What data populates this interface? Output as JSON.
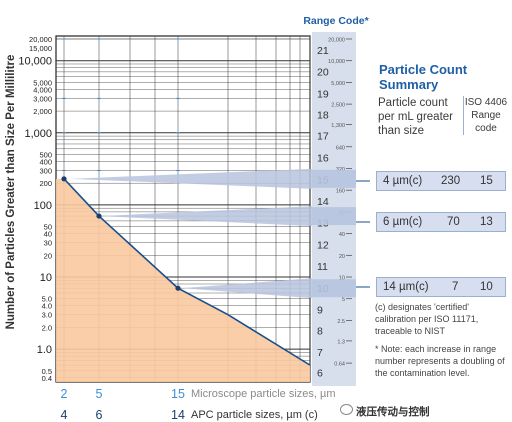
{
  "chart_data": {
    "type": "line",
    "ylabel": "Number of Particles Greater than Size Per Millilitre",
    "y_scale": "log",
    "ylim": [
      0.35,
      22000
    ],
    "x_ticks_microscope": [
      "2",
      "5",
      "15"
    ],
    "x_ticks_apc": [
      "4",
      "6",
      "14"
    ],
    "xlabel_microscope": "Microscope particle sizes, µm",
    "xlabel_apc": "APC particle sizes, µm (c)",
    "y_tick_labels": [
      {
        "v": 20000,
        "t": "20,000"
      },
      {
        "v": 15000,
        "t": "15,000"
      },
      {
        "v": 10000,
        "t": "10,000"
      },
      {
        "v": 5000,
        "t": "5,000"
      },
      {
        "v": 4000,
        "t": "4,000"
      },
      {
        "v": 3000,
        "t": "3,000"
      },
      {
        "v": 2000,
        "t": "2,000"
      },
      {
        "v": 1000,
        "t": "1,000"
      },
      {
        "v": 500,
        "t": "500"
      },
      {
        "v": 400,
        "t": "400"
      },
      {
        "v": 300,
        "t": "300"
      },
      {
        "v": 200,
        "t": "200"
      },
      {
        "v": 100,
        "t": "100"
      },
      {
        "v": 50,
        "t": "50"
      },
      {
        "v": 40,
        "t": "40"
      },
      {
        "v": 30,
        "t": "30"
      },
      {
        "v": 20,
        "t": "20"
      },
      {
        "v": 10,
        "t": "10"
      },
      {
        "v": 5,
        "t": "5.0"
      },
      {
        "v": 4,
        "t": "4.0"
      },
      {
        "v": 3,
        "t": "3.0"
      },
      {
        "v": 2,
        "t": "2.0"
      },
      {
        "v": 1,
        "t": "1.0"
      },
      {
        "v": 0.5,
        "t": "0.5"
      },
      {
        "v": 0.4,
        "t": "0.4"
      }
    ],
    "series": [
      {
        "x": [
          "4",
          "6",
          "14",
          "18",
          "30"
        ],
        "values": [
          230,
          70,
          7,
          3,
          0.6
        ]
      }
    ],
    "range_code_title": "Range Code*",
    "range_codes": [
      "21",
      "20",
      "19",
      "18",
      "17",
      "16",
      "15",
      "14",
      "13",
      "12",
      "11",
      "10",
      "9",
      "8",
      "7",
      "6"
    ],
    "range_bound_labels": [
      {
        "v": 20000,
        "t": "20,000"
      },
      {
        "v": 10000,
        "t": "10,000"
      },
      {
        "v": 5000,
        "t": "5,000"
      },
      {
        "v": 2500,
        "t": "2,500"
      },
      {
        "v": 1300,
        "t": "1,300"
      },
      {
        "v": 640,
        "t": "640"
      },
      {
        "v": 320,
        "t": "320"
      },
      {
        "v": 160,
        "t": "160"
      },
      {
        "v": 80,
        "t": "80"
      },
      {
        "v": 40,
        "t": "40"
      },
      {
        "v": 20,
        "t": "20"
      },
      {
        "v": 10,
        "t": "10"
      },
      {
        "v": 5,
        "t": "5"
      },
      {
        "v": 2.5,
        "t": "2.5"
      },
      {
        "v": 1.3,
        "t": "1.3"
      },
      {
        "v": 0.64,
        "t": "0.64"
      }
    ],
    "highlights": [
      230,
      70,
      7
    ],
    "colors": {
      "fill": "#f8c9a0",
      "line": "#1a4e8c",
      "band": "#b7c4df",
      "rangebar": "#b7c4df",
      "accent": "#1f5fa6",
      "tick_blue": "#3c8fd6"
    }
  },
  "summary": {
    "title": "Particle Count Summary",
    "col_count": "Particle count per mL greater than size",
    "col_iso": "ISO 4406 Range code",
    "rows": [
      {
        "size": "4 µm(c)",
        "count": "230",
        "code": "15"
      },
      {
        "size": "6 µm(c)",
        "count": "70",
        "code": "13"
      },
      {
        "size": "14 µm(c)",
        "count": "7",
        "code": "10"
      }
    ],
    "note_certified": "(c) designates 'certified' calibration per ISO 11171, traceable to NIST",
    "note_doubling": "* Note: each increase in range number represents a doubling of the contamination level."
  },
  "watermark": "液压传动与控制"
}
